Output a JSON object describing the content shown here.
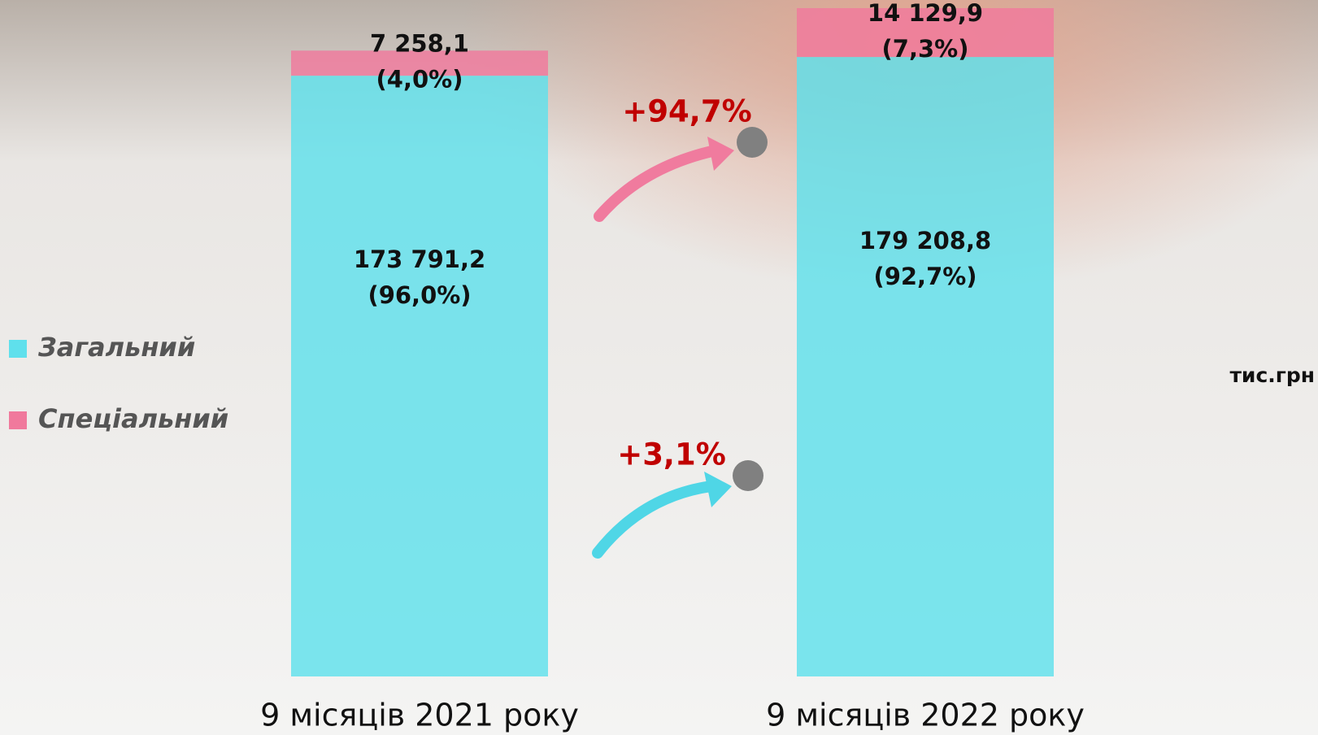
{
  "chart_data": {
    "type": "stacked-bar",
    "categories": [
      "9 місяців 2021 року",
      "9 місяців 2022 року"
    ],
    "series": [
      {
        "name": "Загальний",
        "color": "#5fe0ec",
        "values": [
          173791.2,
          179208.8
        ],
        "value_labels": [
          "173 791,2",
          "179 208,8"
        ],
        "shares": [
          96.0,
          92.7
        ],
        "share_labels": [
          "(96,0%)",
          "(92,7%)"
        ]
      },
      {
        "name": "Спеціальний",
        "color": "#f0799c",
        "values": [
          7258.1,
          14129.9
        ],
        "value_labels": [
          "7 258,1",
          "14 129,9"
        ],
        "shares": [
          4.0,
          7.3
        ],
        "share_labels": [
          "(4,0%)",
          "(7,3%)"
        ]
      }
    ],
    "annotations": [
      "+3,1%",
      "+94,7%"
    ],
    "unit": "тис.грн"
  }
}
